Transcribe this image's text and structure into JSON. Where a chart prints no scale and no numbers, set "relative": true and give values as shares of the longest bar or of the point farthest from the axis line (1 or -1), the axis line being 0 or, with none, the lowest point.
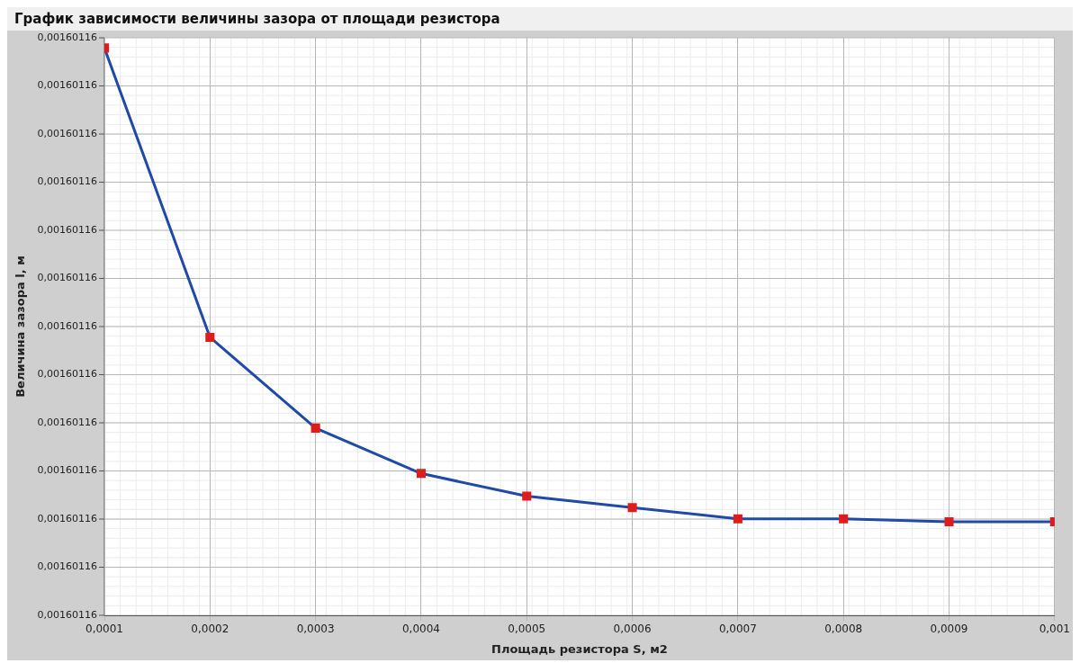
{
  "chart_data": {
    "type": "line",
    "title": "График зависимости величины зазора от площади резистора",
    "xlabel": "Площадь резистора S, м2",
    "ylabel": "Величина зазора l, м",
    "x": [
      0.0001,
      0.0002,
      0.0003,
      0.0004,
      0.0005,
      0.0006,
      0.0007,
      0.0008,
      0.0009,
      0.001
    ],
    "series": [
      {
        "color": "#1f4aa8",
        "colors": [
          "#e01b1b",
          "#e01b1b",
          "#e01b1b",
          "#e01b1b",
          "#e01b1b",
          "#e01b1b",
          "#e01b1b",
          "#e01b1b",
          "#e01b1b",
          "#e01b1b"
        ],
        "values": [
          1,
          0.49,
          0.33,
          0.25,
          0.21,
          0.19,
          0.17,
          0.17,
          0.165,
          0.165
        ]
      }
    ],
    "relative": true,
    "xlim": [
      0.0001,
      0.001
    ],
    "xticks": [
      {
        "value": 0.0001,
        "label": "0,0001"
      },
      {
        "value": 0.0002,
        "label": "0,0002"
      },
      {
        "value": 0.0003,
        "label": "0,0003"
      },
      {
        "value": 0.0004,
        "label": "0,0004"
      },
      {
        "value": 0.0005,
        "label": "0,0005"
      },
      {
        "value": 0.0006,
        "label": "0,0006"
      },
      {
        "value": 0.0007,
        "label": "0,0007"
      },
      {
        "value": 0.0008,
        "label": "0,0008"
      },
      {
        "value": 0.0009,
        "label": "0,0009"
      },
      {
        "value": 0.001,
        "label": "0,001"
      }
    ],
    "annotations": [
      "0,00160116",
      "0,00160116",
      "0,00160116",
      "0,00160116",
      "0,00160116",
      "0,00160116",
      "0,00160116",
      "0,00160116",
      "0,00160116",
      "0,00160116",
      "0,00160116",
      "0,00160116",
      "0,00160116"
    ],
    "grid": true,
    "marker": "square",
    "line_style": "solid"
  }
}
